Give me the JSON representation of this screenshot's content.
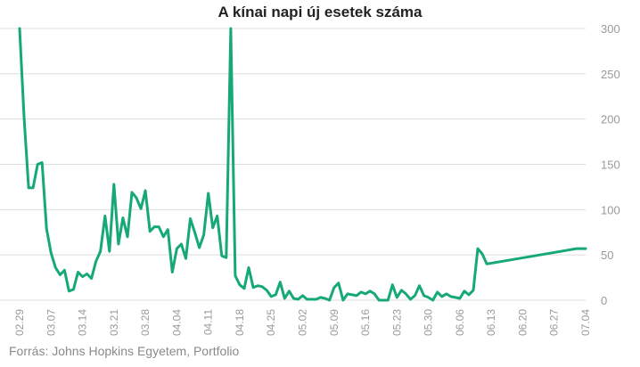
{
  "chart_data": {
    "type": "line",
    "title": "A kínai napi új esetek száma",
    "source": "Forrás: Johns Hopkins Egyetem, Portfolio",
    "color": "#17a879",
    "grid": true,
    "y_axis_side": "right",
    "ylim": [
      0,
      300
    ],
    "yticks": [
      0,
      50,
      100,
      150,
      200,
      250,
      300
    ],
    "xticks": [
      "02.29",
      "03.07",
      "03.14",
      "03.21",
      "03.28",
      "04.04",
      "04.11",
      "04.18",
      "04.25",
      "05.02",
      "05.09",
      "05.16",
      "05.23",
      "05.30",
      "06.06",
      "06.13",
      "06.20",
      "06.27",
      "07.04"
    ],
    "x_start": "02.29",
    "x_end": "07.04",
    "series": [
      {
        "values": [
          300,
          202,
          124,
          124,
          150,
          152,
          79,
          52,
          36,
          28,
          33,
          10,
          12,
          31,
          26,
          29,
          24,
          43,
          54,
          93,
          54,
          128,
          62,
          91,
          70,
          119,
          113,
          101,
          121,
          76,
          81,
          81,
          70,
          78,
          31,
          57,
          62,
          46,
          90,
          75,
          58,
          72,
          118,
          80,
          93,
          49,
          47,
          300,
          27,
          17,
          13,
          36,
          14,
          16,
          15,
          11,
          4,
          6,
          20,
          2,
          10,
          2,
          1,
          5,
          1,
          1,
          1,
          3,
          2,
          0,
          14,
          19,
          0,
          7,
          6,
          5,
          9,
          7,
          10,
          7,
          0,
          0,
          0,
          17,
          3,
          11,
          7,
          1,
          5,
          16,
          5,
          3,
          0,
          9,
          4,
          7,
          4,
          3,
          2,
          10,
          6,
          11,
          57,
          51,
          40
        ]
      }
    ],
    "tail_values": [
      57,
      57
    ]
  }
}
